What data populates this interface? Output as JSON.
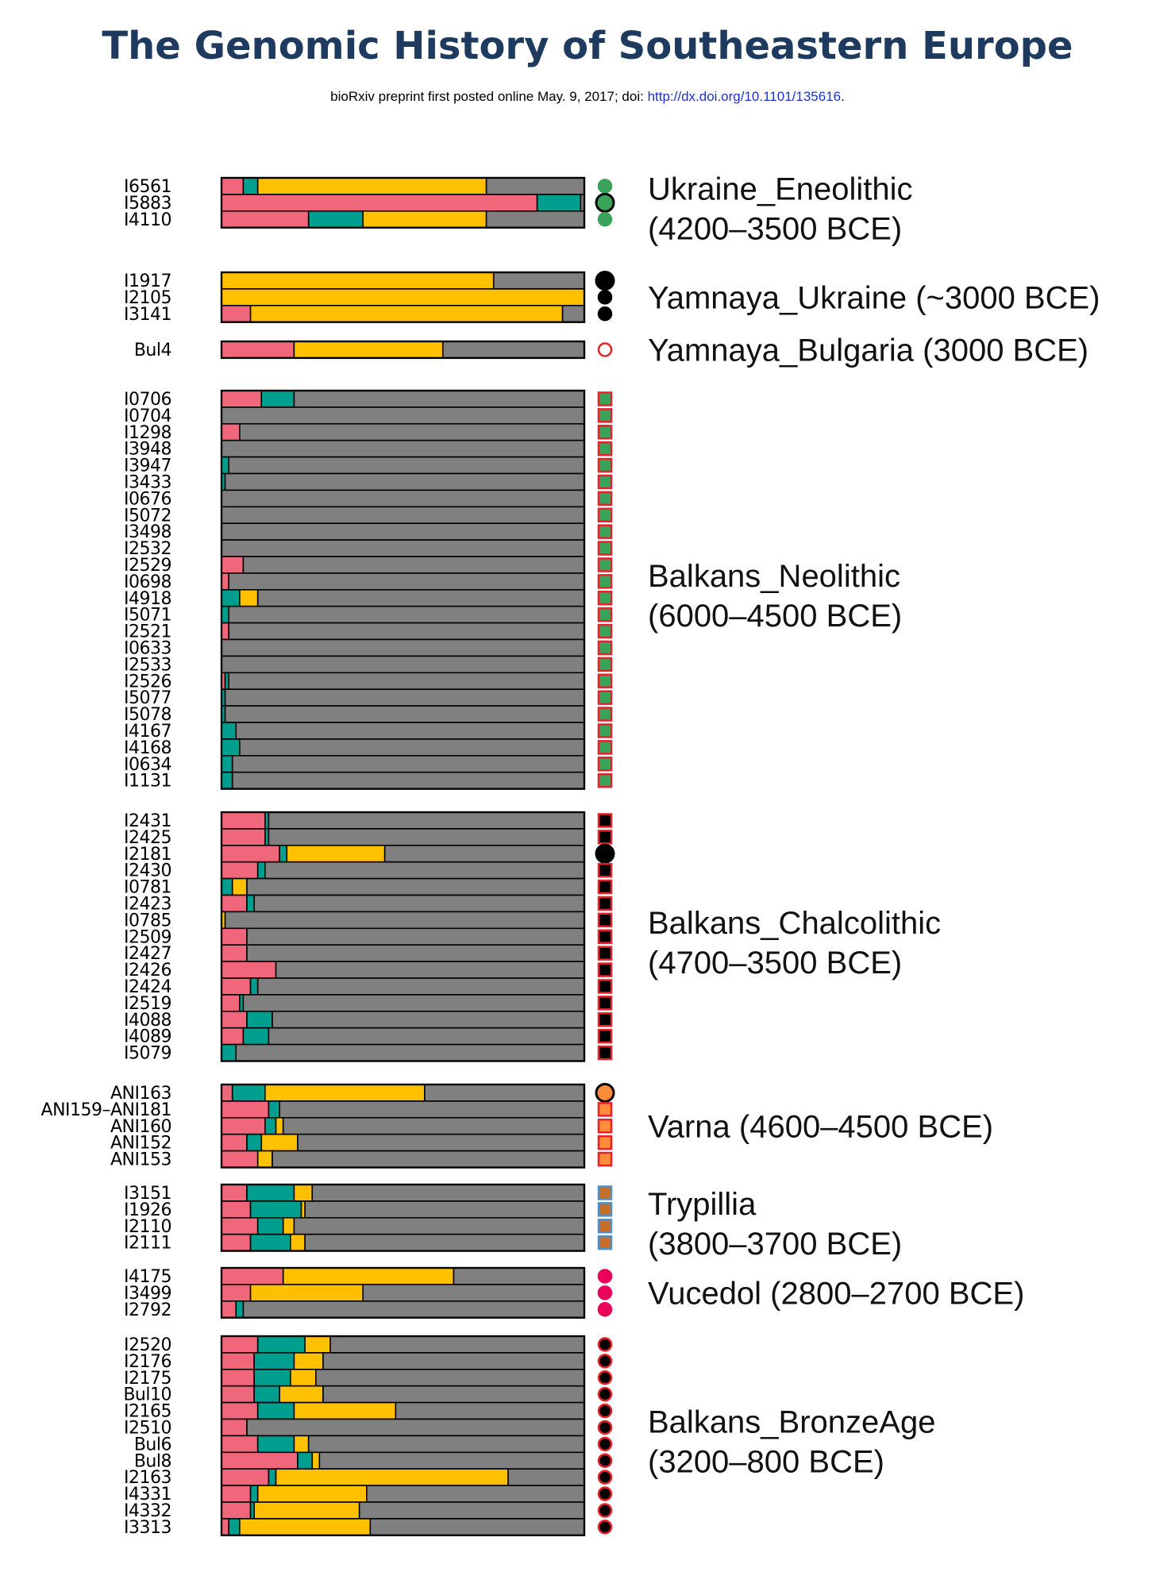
{
  "header": {
    "title": "The Genomic History of Southeastern Europe",
    "preprint_text": "bioRxiv preprint first posted online May. 9, 2017; doi:",
    "doi_link": "http://dx.doi.org/10.1101/135616",
    "doi_end": "."
  },
  "colors": {
    "component_1": "#f0667a",
    "component_2": "#009e8f",
    "component_3": "#ffc000",
    "component_4": "#808080",
    "green_marker": "#3aa35a",
    "black_marker": "#000000",
    "red_outline": "#e8202a",
    "orange_marker": "#ff8c3a",
    "brown_marker": "#c4702a",
    "blue_outline": "#4a90d0",
    "magenta_marker": "#e8005a"
  },
  "chart_data": {
    "type": "stacked-bar",
    "orientation": "horizontal",
    "xlim": [
      0,
      1
    ],
    "components": [
      "component_1",
      "component_2",
      "component_3",
      "component_4"
    ],
    "groups": [
      {
        "label_line1": "Ukraine_Eneolithic",
        "label_line2": "(4200–3500 BCE)",
        "marker": {
          "shape": "circle",
          "fill": "green_marker",
          "stroke": "green_marker",
          "highlight_index": 1
        },
        "samples": [
          {
            "id": "I6561",
            "values": [
              0.06,
              0.04,
              0.63,
              0.27
            ]
          },
          {
            "id": "I5883",
            "values": [
              0.87,
              0.12,
              0.0,
              0.01
            ]
          },
          {
            "id": "I4110",
            "values": [
              0.24,
              0.15,
              0.34,
              0.27
            ]
          }
        ]
      },
      {
        "label_line1": "Yamnaya_Ukraine (~3000 BCE)",
        "label_line2": "",
        "marker": {
          "shape": "circle",
          "fill": "black_marker",
          "stroke": "black_marker",
          "highlight_index": 0
        },
        "samples": [
          {
            "id": "I1917",
            "values": [
              0.0,
              0.0,
              0.75,
              0.25
            ]
          },
          {
            "id": "I2105",
            "values": [
              0.0,
              0.0,
              1.0,
              0.0
            ]
          },
          {
            "id": "I3141",
            "values": [
              0.08,
              0.0,
              0.86,
              0.06
            ]
          }
        ]
      },
      {
        "label_line1": "Yamnaya_Bulgaria (3000 BCE)",
        "label_line2": "",
        "marker": {
          "shape": "circle",
          "fill": "#ffffff",
          "stroke": "red_outline",
          "highlight_index": -1
        },
        "samples": [
          {
            "id": "Bul4",
            "values": [
              0.2,
              0.0,
              0.41,
              0.39
            ]
          }
        ]
      },
      {
        "label_line1": "Balkans_Neolithic",
        "label_line2": "(6000–4500 BCE)",
        "marker": {
          "shape": "square",
          "fill": "green_marker",
          "stroke": "red_outline",
          "highlight_index": -1
        },
        "samples": [
          {
            "id": "I0706",
            "values": [
              0.11,
              0.09,
              0.0,
              0.8
            ]
          },
          {
            "id": "I0704",
            "values": [
              0.0,
              0.0,
              0.0,
              1.0
            ]
          },
          {
            "id": "I1298",
            "values": [
              0.05,
              0.0,
              0.0,
              0.95
            ]
          },
          {
            "id": "I3948",
            "values": [
              0.0,
              0.0,
              0.0,
              1.0
            ]
          },
          {
            "id": "I3947",
            "values": [
              0.0,
              0.02,
              0.0,
              0.98
            ]
          },
          {
            "id": "I3433",
            "values": [
              0.0,
              0.01,
              0.0,
              0.99
            ]
          },
          {
            "id": "I0676",
            "values": [
              0.0,
              0.0,
              0.0,
              1.0
            ]
          },
          {
            "id": "I5072",
            "values": [
              0.0,
              0.0,
              0.0,
              1.0
            ]
          },
          {
            "id": "I3498",
            "values": [
              0.0,
              0.0,
              0.0,
              1.0
            ]
          },
          {
            "id": "I2532",
            "values": [
              0.0,
              0.0,
              0.0,
              1.0
            ]
          },
          {
            "id": "I2529",
            "values": [
              0.06,
              0.0,
              0.0,
              0.94
            ]
          },
          {
            "id": "I0698",
            "values": [
              0.02,
              0.0,
              0.0,
              0.98
            ]
          },
          {
            "id": "I4918",
            "values": [
              0.0,
              0.05,
              0.05,
              0.9
            ]
          },
          {
            "id": "I5071",
            "values": [
              0.0,
              0.02,
              0.0,
              0.98
            ]
          },
          {
            "id": "I2521",
            "values": [
              0.02,
              0.0,
              0.0,
              0.98
            ]
          },
          {
            "id": "I0633",
            "values": [
              0.0,
              0.0,
              0.0,
              1.0
            ]
          },
          {
            "id": "I2533",
            "values": [
              0.0,
              0.0,
              0.0,
              1.0
            ]
          },
          {
            "id": "I2526",
            "values": [
              0.01,
              0.01,
              0.0,
              0.98
            ]
          },
          {
            "id": "I5077",
            "values": [
              0.0,
              0.01,
              0.0,
              0.99
            ]
          },
          {
            "id": "I5078",
            "values": [
              0.0,
              0.01,
              0.0,
              0.99
            ]
          },
          {
            "id": "I4167",
            "values": [
              0.0,
              0.04,
              0.0,
              0.96
            ]
          },
          {
            "id": "I4168",
            "values": [
              0.0,
              0.05,
              0.0,
              0.95
            ]
          },
          {
            "id": "I0634",
            "values": [
              0.0,
              0.03,
              0.0,
              0.97
            ]
          },
          {
            "id": "I1131",
            "values": [
              0.0,
              0.03,
              0.0,
              0.97
            ]
          }
        ]
      },
      {
        "label_line1": "Balkans_Chalcolithic",
        "label_line2": "(4700–3500 BCE)",
        "marker": {
          "shape": "square",
          "fill": "black_marker",
          "stroke": "red_outline",
          "highlight_index": 2
        },
        "samples": [
          {
            "id": "I2431",
            "values": [
              0.12,
              0.01,
              0.0,
              0.87
            ]
          },
          {
            "id": "I2425",
            "values": [
              0.12,
              0.01,
              0.0,
              0.87
            ]
          },
          {
            "id": "I2181",
            "values": [
              0.16,
              0.02,
              0.27,
              0.55
            ]
          },
          {
            "id": "I2430",
            "values": [
              0.1,
              0.02,
              0.0,
              0.88
            ]
          },
          {
            "id": "I0781",
            "values": [
              0.0,
              0.03,
              0.04,
              0.93
            ]
          },
          {
            "id": "I2423",
            "values": [
              0.07,
              0.02,
              0.0,
              0.91
            ]
          },
          {
            "id": "I0785",
            "values": [
              0.0,
              0.0,
              0.01,
              0.99
            ]
          },
          {
            "id": "I2509",
            "values": [
              0.07,
              0.0,
              0.0,
              0.93
            ]
          },
          {
            "id": "I2427",
            "values": [
              0.07,
              0.0,
              0.0,
              0.93
            ]
          },
          {
            "id": "I2426",
            "values": [
              0.15,
              0.0,
              0.0,
              0.85
            ]
          },
          {
            "id": "I2424",
            "values": [
              0.08,
              0.02,
              0.0,
              0.9
            ]
          },
          {
            "id": "I2519",
            "values": [
              0.05,
              0.01,
              0.0,
              0.94
            ]
          },
          {
            "id": "I4088",
            "values": [
              0.07,
              0.07,
              0.0,
              0.86
            ]
          },
          {
            "id": "I4089",
            "values": [
              0.06,
              0.07,
              0.0,
              0.87
            ]
          },
          {
            "id": "I5079",
            "values": [
              0.0,
              0.04,
              0.0,
              0.96
            ]
          }
        ]
      },
      {
        "label_line1": "Varna (4600–4500 BCE)",
        "label_line2": "",
        "marker": {
          "shape": "square",
          "fill": "orange_marker",
          "stroke": "red_outline",
          "highlight_index": 0
        },
        "samples": [
          {
            "id": "ANI163",
            "values": [
              0.03,
              0.09,
              0.44,
              0.44
            ]
          },
          {
            "id": "ANI159–ANI181",
            "values": [
              0.13,
              0.03,
              0.0,
              0.84
            ]
          },
          {
            "id": "ANI160",
            "values": [
              0.12,
              0.03,
              0.02,
              0.83
            ]
          },
          {
            "id": "ANI152",
            "values": [
              0.07,
              0.04,
              0.1,
              0.79
            ]
          },
          {
            "id": "ANI153",
            "values": [
              0.1,
              0.0,
              0.04,
              0.86
            ]
          }
        ]
      },
      {
        "label_line1": "Trypillia",
        "label_line2": "(3800–3700 BCE)",
        "marker": {
          "shape": "square",
          "fill": "brown_marker",
          "stroke": "blue_outline",
          "highlight_index": -1
        },
        "samples": [
          {
            "id": "I3151",
            "values": [
              0.07,
              0.13,
              0.05,
              0.75
            ]
          },
          {
            "id": "I1926",
            "values": [
              0.08,
              0.14,
              0.01,
              0.77
            ]
          },
          {
            "id": "I2110",
            "values": [
              0.1,
              0.07,
              0.03,
              0.8
            ]
          },
          {
            "id": "I2111",
            "values": [
              0.08,
              0.11,
              0.04,
              0.77
            ]
          }
        ]
      },
      {
        "label_line1": "Vucedol (2800–2700 BCE)",
        "label_line2": "",
        "marker": {
          "shape": "circle",
          "fill": "magenta_marker",
          "stroke": "magenta_marker",
          "highlight_index": -1
        },
        "samples": [
          {
            "id": "I4175",
            "values": [
              0.17,
              0.0,
              0.47,
              0.36
            ]
          },
          {
            "id": "I3499",
            "values": [
              0.08,
              0.0,
              0.31,
              0.61
            ]
          },
          {
            "id": "I2792",
            "values": [
              0.04,
              0.02,
              0.0,
              0.94
            ]
          }
        ]
      },
      {
        "label_line1": "Balkans_BronzeAge",
        "label_line2": "(3200–800 BCE)",
        "marker": {
          "shape": "circle",
          "fill": "black_marker",
          "stroke": "red_outline",
          "highlight_index": -1
        },
        "samples": [
          {
            "id": "I2520",
            "values": [
              0.1,
              0.13,
              0.07,
              0.7
            ]
          },
          {
            "id": "I2176",
            "values": [
              0.09,
              0.11,
              0.08,
              0.72
            ]
          },
          {
            "id": "I2175",
            "values": [
              0.09,
              0.1,
              0.07,
              0.74
            ]
          },
          {
            "id": "Bul10",
            "values": [
              0.09,
              0.07,
              0.12,
              0.72
            ]
          },
          {
            "id": "I2165",
            "values": [
              0.1,
              0.1,
              0.28,
              0.52
            ]
          },
          {
            "id": "I2510",
            "values": [
              0.07,
              0.0,
              0.0,
              0.93
            ]
          },
          {
            "id": "Bul6",
            "values": [
              0.1,
              0.1,
              0.04,
              0.76
            ]
          },
          {
            "id": "Bul8",
            "values": [
              0.21,
              0.04,
              0.02,
              0.73
            ]
          },
          {
            "id": "I2163",
            "values": [
              0.13,
              0.02,
              0.64,
              0.21
            ]
          },
          {
            "id": "I4331",
            "values": [
              0.08,
              0.02,
              0.3,
              0.6
            ]
          },
          {
            "id": "I4332",
            "values": [
              0.08,
              0.01,
              0.29,
              0.62
            ]
          },
          {
            "id": "I3313",
            "values": [
              0.02,
              0.03,
              0.36,
              0.59
            ]
          }
        ]
      }
    ]
  }
}
